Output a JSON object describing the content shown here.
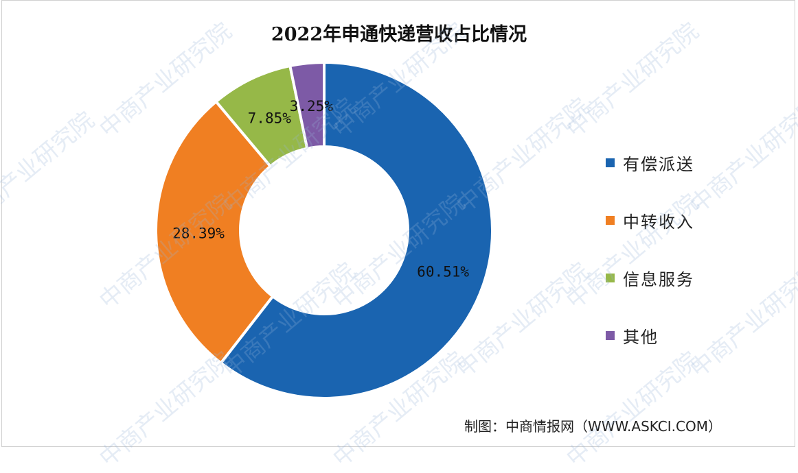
{
  "chart_data": {
    "type": "pie",
    "variant": "donut",
    "title": "2022年申通快递营收占比情况",
    "categories": [
      "有偿派送",
      "中转收入",
      "信息服务",
      "其他"
    ],
    "values": [
      60.51,
      28.39,
      7.85,
      3.25
    ],
    "data_labels": [
      "60.51%",
      "28.39%",
      "7.85%",
      "3.25%"
    ],
    "colors": [
      "#1a64b0",
      "#f07f22",
      "#96b848",
      "#7d5aa6"
    ],
    "legend_position": "right"
  },
  "footer": "制图：中商情报网（WWW.ASKCI.COM）",
  "watermark": "中商产业研究院"
}
